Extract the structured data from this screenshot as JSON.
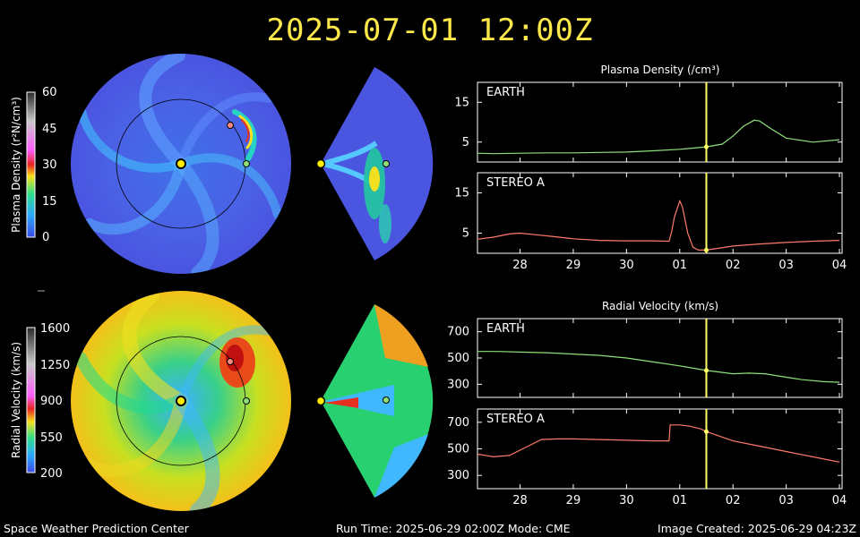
{
  "title": "2025-07-01 12:00Z",
  "footer": {
    "left": "Space Weather Prediction Center",
    "center": "Run Time: 2025-06-29 02:00Z   Mode: CME",
    "right": "Image Created: 2025-06-29 04:23Z"
  },
  "colorbars": {
    "density": {
      "label": "Plasma Density (r²N/cm³)",
      "ticks": [
        "60",
        "45",
        "30",
        "15",
        "0"
      ]
    },
    "velocity": {
      "label": "Radial Velocity (km/s)",
      "ticks": [
        "1600",
        "1250",
        "900",
        "550",
        "200"
      ]
    }
  },
  "colors": {
    "earth_line": "#8ee07a",
    "stereo_line": "#ff7b6b",
    "marker": "#ffff66",
    "title": "#ffe84a"
  },
  "chart_data": [
    {
      "type": "line",
      "title": "Plasma Density (/cm³)",
      "panel": "EARTH",
      "x_ticks": [
        "28",
        "29",
        "30",
        "01",
        "02",
        "03",
        "04"
      ],
      "x": [
        27.2,
        27.5,
        28,
        28.5,
        29,
        29.5,
        30,
        30.5,
        31,
        31.5,
        31.8,
        32.0,
        32.2,
        32.4,
        32.5,
        32.7,
        33.0,
        33.5,
        34.0
      ],
      "values": [
        2.2,
        2.1,
        2.2,
        2.3,
        2.3,
        2.4,
        2.5,
        2.8,
        3.2,
        3.8,
        4.5,
        6.5,
        9.0,
        10.5,
        10.3,
        8.5,
        6.0,
        5.0,
        5.6
      ],
      "y_ticks": [
        "15",
        "5"
      ],
      "ylim": [
        0,
        20
      ],
      "xlim": [
        27.2,
        34.05
      ],
      "marker_x": 31.5
    },
    {
      "type": "line",
      "panel": "STEREO A",
      "x_ticks": [
        "28",
        "29",
        "30",
        "01",
        "02",
        "03",
        "04"
      ],
      "x": [
        27.2,
        27.5,
        27.8,
        28.0,
        28.3,
        28.6,
        29.0,
        29.5,
        30.0,
        30.5,
        30.8,
        30.85,
        30.9,
        31.0,
        31.05,
        31.15,
        31.25,
        31.35,
        31.5,
        31.7,
        32.0,
        32.5,
        33.0,
        33.5,
        34.0
      ],
      "values": [
        3.5,
        4.0,
        4.8,
        5.0,
        4.6,
        4.2,
        3.6,
        3.2,
        3.1,
        3.1,
        3.0,
        5.5,
        9.0,
        13.0,
        11.5,
        5.0,
        1.5,
        0.8,
        0.8,
        1.2,
        1.8,
        2.3,
        2.7,
        3.0,
        3.2
      ],
      "y_ticks": [
        "15",
        "5"
      ],
      "ylim": [
        0,
        20
      ],
      "xlim": [
        27.2,
        34.05
      ],
      "marker_x": 31.5
    },
    {
      "type": "line",
      "title": "Radial Velocity (km/s)",
      "panel": "EARTH",
      "x_ticks": [
        "28",
        "29",
        "30",
        "01",
        "02",
        "03",
        "04"
      ],
      "x": [
        27.2,
        27.6,
        28.0,
        28.5,
        29.0,
        29.5,
        30.0,
        30.5,
        31.0,
        31.5,
        31.8,
        32.0,
        32.3,
        32.6,
        32.9,
        33.3,
        33.7,
        34.0
      ],
      "values": [
        550,
        550,
        545,
        540,
        530,
        520,
        500,
        470,
        440,
        405,
        390,
        380,
        385,
        380,
        360,
        335,
        320,
        315
      ],
      "y_ticks": [
        "700",
        "500",
        "300"
      ],
      "ylim": [
        200,
        800
      ],
      "xlim": [
        27.2,
        34.05
      ],
      "marker_x": 31.5
    },
    {
      "type": "line",
      "panel": "STEREO A",
      "x_ticks": [
        "28",
        "29",
        "30",
        "01",
        "02",
        "03",
        "04"
      ],
      "x": [
        27.2,
        27.5,
        27.8,
        28.1,
        28.4,
        28.7,
        29.0,
        29.5,
        30.0,
        30.5,
        30.8,
        30.82,
        31.0,
        31.2,
        31.4,
        31.5,
        32.0,
        32.5,
        33.0,
        33.5,
        34.0
      ],
      "values": [
        460,
        440,
        450,
        510,
        570,
        575,
        575,
        570,
        565,
        560,
        560,
        680,
        680,
        670,
        650,
        630,
        560,
        520,
        480,
        440,
        400
      ],
      "y_ticks": [
        "700",
        "500",
        "300"
      ],
      "ylim": [
        200,
        800
      ],
      "xlim": [
        27.2,
        34.05
      ],
      "marker_x": 31.5
    }
  ]
}
